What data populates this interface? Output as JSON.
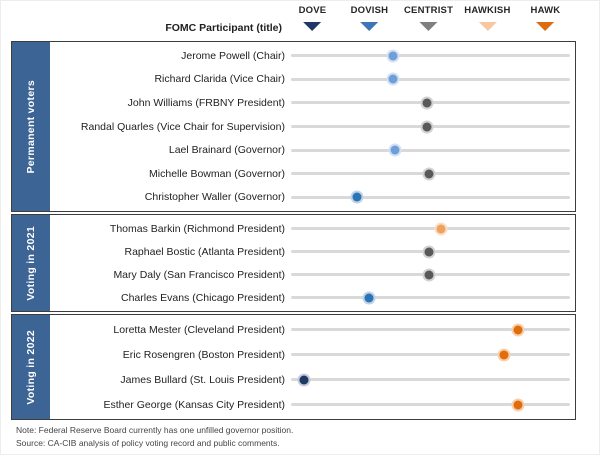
{
  "header": {
    "participant_column_label": "FOMC Participant (title)"
  },
  "palette": {
    "navy": {
      "fill": "#1f3864",
      "halo": "#c3cddd"
    },
    "medium_blue": {
      "fill": "#2e74b5",
      "halo": "#bed4ea"
    },
    "light_blue": {
      "fill": "#6f9ed8",
      "halo": "#d3e1f4"
    },
    "gray": {
      "fill": "#595959",
      "halo": "#d2d2d2"
    },
    "light_orange": {
      "fill": "#f0a160",
      "halo": "#fadfc8"
    },
    "orange": {
      "fill": "#e06c0c",
      "halo": "#f7d0ae"
    }
  },
  "chart_data": {
    "type": "scatter",
    "title": "FOMC participant policy stance dot plot (dove-hawk spectrum)",
    "x_axis_range_pct": [
      0,
      100
    ],
    "legend": [
      {
        "label": "DOVE",
        "color": "#1f3864",
        "pos_pct": 7.7
      },
      {
        "label": "DOVISH",
        "color": "#3e74b8",
        "pos_pct": 28.1
      },
      {
        "label": "CENTRIST",
        "color": "#7f7f7f",
        "pos_pct": 49.3
      },
      {
        "label": "HAWKISH",
        "color": "#f6c8a2",
        "pos_pct": 70.4
      },
      {
        "label": "HAWK",
        "color": "#dd6b10",
        "pos_pct": 91.2
      }
    ],
    "sections": [
      {
        "label": "Permanent voters",
        "participants": [
          {
            "name": "Jerome Powell (Chair)",
            "stance": "dovish",
            "color_key": "light_blue",
            "pos_pct": 36.4
          },
          {
            "name": "Richard Clarida (Vice Chair)",
            "stance": "dovish",
            "color_key": "light_blue",
            "pos_pct": 36.4
          },
          {
            "name": "John Williams (FRBNY President)",
            "stance": "centrist",
            "color_key": "gray",
            "pos_pct": 48.9
          },
          {
            "name": "Randal Quarles (Vice Chair for Supervision)",
            "stance": "centrist",
            "color_key": "gray",
            "pos_pct": 48.9
          },
          {
            "name": "Lael Brainard (Governor)",
            "stance": "dovish",
            "color_key": "light_blue",
            "pos_pct": 37.1
          },
          {
            "name": "Michelle Bowman (Governor)",
            "stance": "centrist",
            "color_key": "gray",
            "pos_pct": 49.3
          },
          {
            "name": "Christopher Waller (Governor)",
            "stance": "dovish",
            "color_key": "medium_blue",
            "pos_pct": 23.5
          }
        ]
      },
      {
        "label": "Voting in 2021",
        "participants": [
          {
            "name": "Thomas Barkin (Richmond President)",
            "stance": "slightly hawkish",
            "color_key": "light_orange",
            "pos_pct": 53.9
          },
          {
            "name": "Raphael Bostic (Atlanta President)",
            "stance": "centrist",
            "color_key": "gray",
            "pos_pct": 49.6
          },
          {
            "name": "Mary Daly (San Francisco President)",
            "stance": "centrist",
            "color_key": "gray",
            "pos_pct": 49.6
          },
          {
            "name": "Charles Evans (Chicago President)",
            "stance": "dovish",
            "color_key": "medium_blue",
            "pos_pct": 27.8
          }
        ]
      },
      {
        "label": "Voting in 2022",
        "participants": [
          {
            "name": "Loretta Mester (Cleveland President)",
            "stance": "hawkish",
            "color_key": "orange",
            "pos_pct": 81.5
          },
          {
            "name": "Eric Rosengren (Boston President)",
            "stance": "hawkish",
            "color_key": "orange",
            "pos_pct": 76.2
          },
          {
            "name": "James Bullard (St. Louis President)",
            "stance": "dove",
            "color_key": "navy",
            "pos_pct": 4.5
          },
          {
            "name": "Esther George (Kansas City President)",
            "stance": "hawkish",
            "color_key": "orange",
            "pos_pct": 81.5
          }
        ]
      }
    ]
  },
  "footer": {
    "note": "Note: Federal Reserve Board currently has one unfilled governor position.",
    "source": "Source: CA-CIB analysis of policy voting record and public comments."
  }
}
